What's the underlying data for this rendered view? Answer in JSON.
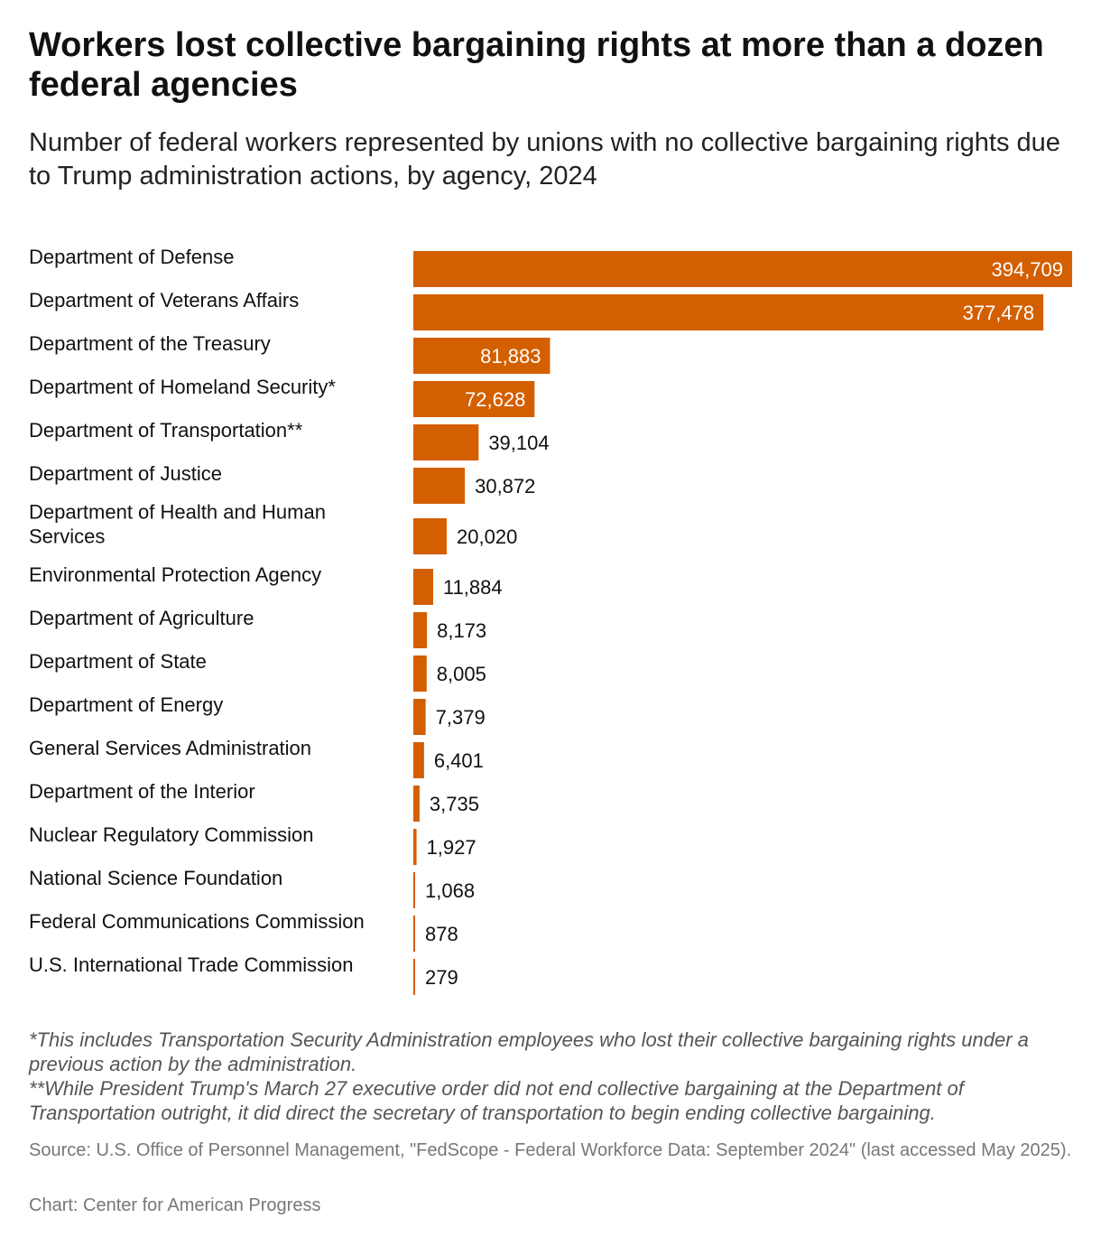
{
  "chart_data": {
    "type": "bar",
    "orientation": "horizontal",
    "title": "Workers lost collective bargaining rights at more than a dozen federal agencies",
    "subtitle": "Number of federal workers represented by unions with no collective bargaining rights due to Trump administration actions, by agency, 2024",
    "categories": [
      "Department of Defense",
      "Department of Veterans Affairs",
      "Department of the Treasury",
      "Department of Homeland Security*",
      "Department of Transportation**",
      "Department of Justice",
      "Department of Health and Human Services",
      "Environmental Protection Agency",
      "Department of Agriculture",
      "Department of State",
      "Department of Energy",
      "General Services Administration",
      "Department of the Interior",
      "Nuclear Regulatory Commission",
      "National Science Foundation",
      "Federal Communications Commission",
      "U.S. International Trade Commission"
    ],
    "values": [
      394709,
      377478,
      81883,
      72628,
      39104,
      30872,
      20020,
      11884,
      8173,
      8005,
      7379,
      6401,
      3735,
      1927,
      1068,
      878,
      279
    ],
    "value_labels": [
      "394,709",
      "377,478",
      "81,883",
      "72,628",
      "39,104",
      "30,872",
      "20,020",
      "11,884",
      "8,173",
      "8,005",
      "7,379",
      "6,401",
      "3,735",
      "1,927",
      "1,068",
      "878",
      "279"
    ],
    "xlim": [
      0,
      394709
    ],
    "bar_color": "#d35f00",
    "xlabel": "",
    "ylabel": ""
  },
  "notes": {
    "note1": "*This includes Transportation Security Administration employees who lost their collective bargaining rights under a previous action by the administration.",
    "note2": "**While President Trump's March 27 executive order did not end collective bargaining at the Department of Transportation outright, it did direct the secretary of transportation to begin ending collective bargaining."
  },
  "source": "Source: U.S. Office of Personnel Management, \"FedScope - Federal Workforce Data: September 2024\" (last accessed May 2025).",
  "credit": "Chart: Center for American Progress"
}
